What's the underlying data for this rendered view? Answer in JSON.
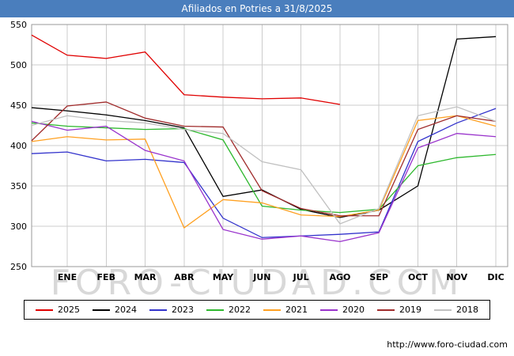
{
  "title": "Afiliados en Potries a 31/8/2025",
  "watermark": "FORO-CIUDAD.COM",
  "footer_url": "http://www.foro-ciudad.com",
  "colors": {
    "title_bar": "#4a7ebd",
    "grid": "#cccccc",
    "plot_border": "#999999",
    "watermark": "#d8d8d8"
  },
  "chart_data": {
    "type": "line",
    "title": "Afiliados en Potries a 31/8/2025",
    "xlabel": "",
    "ylabel": "",
    "x": [
      "ENE",
      "FEB",
      "MAR",
      "ABR",
      "MAY",
      "JUN",
      "JUL",
      "AGO",
      "SEP",
      "OCT",
      "NOV",
      "DIC"
    ],
    "ylim": [
      250,
      550
    ],
    "ytick_step": 50,
    "grid": true,
    "legend_position": "bottom",
    "x_start_note": "first value of each series is plotted at the left axis edge before ENE",
    "series": [
      {
        "name": "2025",
        "color": "#e00000",
        "values": [
          537,
          512,
          508,
          516,
          463,
          460,
          458,
          459,
          451
        ]
      },
      {
        "name": "2024",
        "color": "#000000",
        "values": [
          447,
          443,
          438,
          431,
          422,
          337,
          345,
          321,
          311,
          320,
          350,
          532,
          535
        ]
      },
      {
        "name": "2023",
        "color": "#3333cc",
        "values": [
          390,
          392,
          381,
          383,
          379,
          310,
          286,
          288,
          290,
          293,
          405,
          428,
          446
        ]
      },
      {
        "name": "2022",
        "color": "#2eb82e",
        "values": [
          428,
          424,
          422,
          420,
          421,
          407,
          325,
          320,
          317,
          321,
          375,
          385,
          389
        ]
      },
      {
        "name": "2021",
        "color": "#ffa020",
        "values": [
          405,
          411,
          407,
          408,
          298,
          333,
          329,
          314,
          312,
          320,
          431,
          437,
          424
        ]
      },
      {
        "name": "2020",
        "color": "#9933cc",
        "values": [
          430,
          419,
          424,
          394,
          381,
          296,
          284,
          288,
          281,
          292,
          397,
          415,
          411
        ]
      },
      {
        "name": "2019",
        "color": "#a02c2c",
        "values": [
          406,
          449,
          454,
          434,
          424,
          423,
          344,
          322,
          313,
          313,
          420,
          437,
          430
        ]
      },
      {
        "name": "2018",
        "color": "#c0c0c0",
        "values": [
          425,
          437,
          431,
          428,
          420,
          415,
          380,
          370,
          303,
          322,
          437,
          448,
          430
        ]
      }
    ],
    "legend_items": [
      "2025",
      "2024",
      "2023",
      "2022",
      "2021",
      "2020",
      "2019",
      "2018"
    ]
  }
}
